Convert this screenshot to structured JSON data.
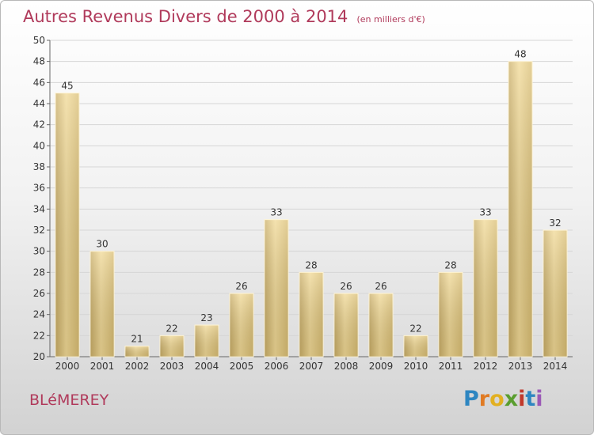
{
  "title": "Autres Revenus Divers de 2000 à 2014",
  "title_unit": "(en milliers d'€)",
  "town": "BLéMEREY",
  "logo": {
    "letters": [
      "P",
      "r",
      "o",
      "x",
      "i",
      "t",
      "i"
    ],
    "colors": [
      "#2e86c1",
      "#e07b24",
      "#e2b021",
      "#5a9e2f",
      "#c0392b",
      "#2e86c1",
      "#9b59b6"
    ]
  },
  "chart_data": {
    "type": "bar",
    "categories": [
      "2000",
      "2001",
      "2002",
      "2003",
      "2004",
      "2005",
      "2006",
      "2007",
      "2008",
      "2009",
      "2010",
      "2011",
      "2012",
      "2013",
      "2014"
    ],
    "values": [
      45,
      30,
      21,
      22,
      23,
      26,
      33,
      28,
      26,
      26,
      22,
      28,
      33,
      48,
      32
    ],
    "ylim": [
      20,
      50
    ],
    "yticks": [
      20,
      22,
      24,
      26,
      28,
      30,
      32,
      34,
      36,
      38,
      40,
      42,
      44,
      46,
      48,
      50
    ],
    "grid": true,
    "bar_color": "#e8cf8a"
  }
}
